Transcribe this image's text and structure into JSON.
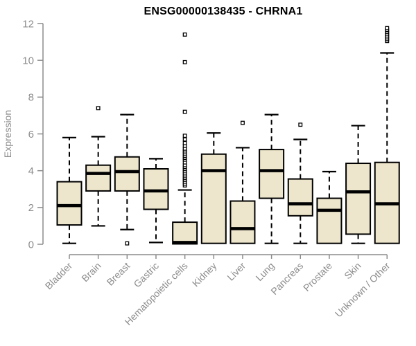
{
  "chart_data": {
    "type": "boxplot",
    "title": "ENSG00000138435 - CHRNA1",
    "ylabel": "Expression",
    "ylim": [
      0,
      12
    ],
    "yticks": [
      0,
      2,
      4,
      6,
      8,
      10,
      12
    ],
    "grid": false,
    "legend": "none",
    "categories": [
      "Bladder",
      "Brain",
      "Breast",
      "Gastric",
      "Hematopoietic cells",
      "Kidney",
      "Liver",
      "Lung",
      "Pancreas",
      "Prostate",
      "Skin",
      "Unknown / Other"
    ],
    "series": [
      {
        "name": "Bladder",
        "low": 0.05,
        "q1": 1.05,
        "median": 2.1,
        "q3": 3.4,
        "high": 5.8,
        "outliers": []
      },
      {
        "name": "Brain",
        "low": 1.0,
        "q1": 2.9,
        "median": 3.85,
        "q3": 4.3,
        "high": 5.85,
        "outliers": [
          7.4
        ]
      },
      {
        "name": "Breast",
        "low": 0.8,
        "q1": 2.9,
        "median": 3.95,
        "q3": 4.75,
        "high": 7.05,
        "outliers": [
          0.05
        ]
      },
      {
        "name": "Gastric",
        "low": 0.1,
        "q1": 1.9,
        "median": 2.9,
        "q3": 4.1,
        "high": 4.65,
        "outliers": []
      },
      {
        "name": "Hematopoietic cells",
        "low": null,
        "q1": 0.02,
        "median": 0.1,
        "q3": 1.2,
        "high": 2.95,
        "outliers": [
          3.2,
          3.3,
          3.4,
          3.5,
          3.6,
          3.7,
          3.8,
          3.9,
          4.0,
          4.1,
          4.2,
          4.3,
          4.45,
          4.6,
          4.7,
          4.8,
          4.9,
          5.0,
          5.1,
          5.2,
          5.35,
          5.5,
          5.7,
          5.9,
          7.2,
          9.9,
          11.4
        ]
      },
      {
        "name": "Kidney",
        "low": null,
        "q1": 0.05,
        "median": 4.0,
        "q3": 4.9,
        "high": 6.05,
        "outliers": []
      },
      {
        "name": "Liver",
        "low": null,
        "q1": 0.05,
        "median": 0.85,
        "q3": 2.35,
        "high": 5.25,
        "outliers": [
          6.6
        ]
      },
      {
        "name": "Lung",
        "low": 0.05,
        "q1": 2.5,
        "median": 4.0,
        "q3": 5.15,
        "high": 7.05,
        "outliers": []
      },
      {
        "name": "Pancreas",
        "low": 0.05,
        "q1": 1.55,
        "median": 2.2,
        "q3": 3.55,
        "high": 5.7,
        "outliers": [
          6.5
        ]
      },
      {
        "name": "Prostate",
        "low": null,
        "q1": 0.05,
        "median": 1.85,
        "q3": 2.5,
        "high": 3.95,
        "outliers": []
      },
      {
        "name": "Skin",
        "low": 0.05,
        "q1": 0.55,
        "median": 2.85,
        "q3": 4.4,
        "high": 6.45,
        "outliers": []
      },
      {
        "name": "Unknown / Other",
        "low": null,
        "q1": 0.05,
        "median": 2.2,
        "q3": 4.45,
        "high": 10.4,
        "outliers": [
          11.05,
          11.15,
          11.25,
          11.35,
          11.45,
          11.55,
          11.65,
          11.75
        ]
      }
    ],
    "colors": {
      "box_fill": "#EDE6CC",
      "box_stroke": "#000000",
      "median": "#000000",
      "whisker": "#000000",
      "outlier_stroke": "#000000",
      "outlier_fill": "#FFFFFF",
      "axis": "#8C8C8C",
      "tick_label": "#8C8C8C",
      "title": "#000000",
      "background": "#FFFFFF"
    }
  }
}
